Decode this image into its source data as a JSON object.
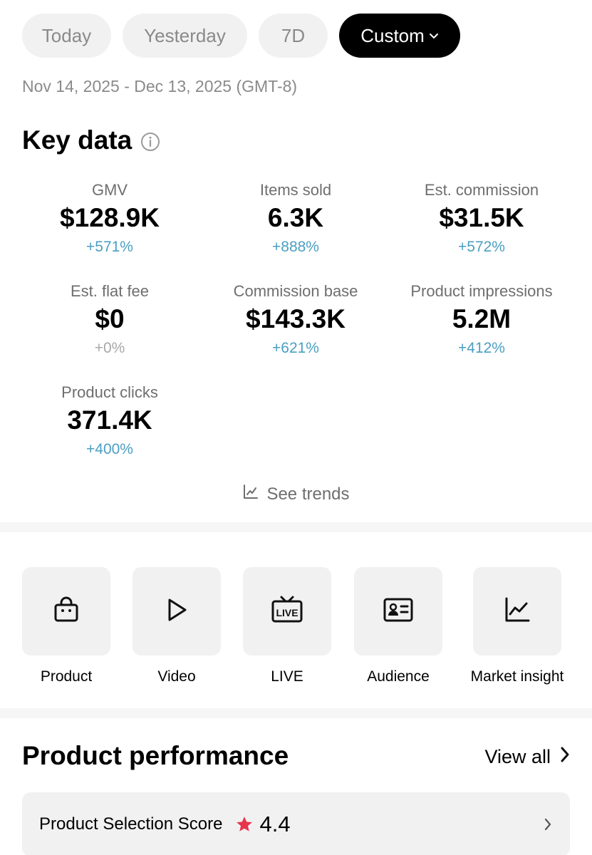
{
  "date_tabs": [
    {
      "label": "Today",
      "active": false
    },
    {
      "label": "Yesterday",
      "active": false
    },
    {
      "label": "7D",
      "active": false
    },
    {
      "label": "Custom",
      "active": true
    }
  ],
  "date_range": "Nov 14, 2025 - Dec 13, 2025 (GMT-8)",
  "key_data": {
    "title": "Key data",
    "info_icon": "info-circle-icon",
    "metrics": [
      {
        "label": "GMV",
        "value": "$128.9K",
        "delta": "+571%"
      },
      {
        "label": "Items sold",
        "value": "6.3K",
        "delta": "+888%"
      },
      {
        "label": "Est. commission",
        "value": "$31.5K",
        "delta": "+572%"
      },
      {
        "label": "Est. flat fee",
        "value": "$0",
        "delta": "+0%"
      },
      {
        "label": "Commission base",
        "value": "$143.3K",
        "delta": "+621%"
      },
      {
        "label": "Product impressions",
        "value": "5.2M",
        "delta": "+412%"
      },
      {
        "label": "Product clicks",
        "value": "371.4K",
        "delta": "+400%"
      }
    ],
    "see_trends": "See trends"
  },
  "shortcuts": [
    {
      "label": "Product",
      "icon": "shopping-bag-icon"
    },
    {
      "label": "Video",
      "icon": "play-icon"
    },
    {
      "label": "LIVE",
      "icon": "live-tv-icon"
    },
    {
      "label": "Audience",
      "icon": "id-card-icon"
    },
    {
      "label": "Market insight",
      "icon": "chart-line-icon"
    }
  ],
  "product_performance": {
    "title": "Product performance",
    "view_all": "View all",
    "score_label": "Product Selection Score",
    "score_value": "4.4"
  },
  "colors": {
    "positive_delta": "#4b9fc2",
    "neutral_delta": "#a8a8a8",
    "star": "#e8344c",
    "chip_bg": "#f1f1f2",
    "active_chip_bg": "#000000"
  }
}
